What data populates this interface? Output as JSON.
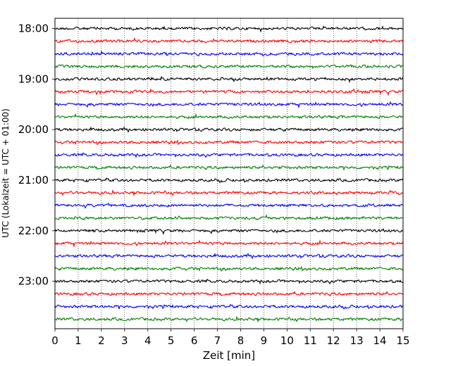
{
  "chart_data": {
    "type": "line",
    "title": "",
    "xlabel": "Zeit  [min]",
    "ylabel": "UTC (Lokalzeit = UTC + 01:00)",
    "xlim": [
      0,
      15
    ],
    "x_ticks": [
      "0",
      "1",
      "2",
      "3",
      "4",
      "5",
      "6",
      "7",
      "8",
      "9",
      "10",
      "11",
      "12",
      "13",
      "14",
      "15"
    ],
    "y_ticks": [
      "18:00",
      "19:00",
      "20:00",
      "21:00",
      "22:00",
      "23:00"
    ],
    "grid": "vertical dotted lines at each minute",
    "trace_interval_minutes": 15,
    "trace_start_times": [
      "18:00",
      "18:15",
      "18:30",
      "18:45",
      "19:00",
      "19:15",
      "19:30",
      "19:45",
      "20:00",
      "20:15",
      "20:30",
      "20:45",
      "21:00",
      "21:15",
      "21:30",
      "21:45",
      "22:00",
      "22:15",
      "22:30",
      "22:45",
      "23:00",
      "23:15",
      "23:30",
      "23:45"
    ],
    "trace_color_cycle": [
      "#000000",
      "#ff0000",
      "#0000ff",
      "#008000"
    ]
  }
}
